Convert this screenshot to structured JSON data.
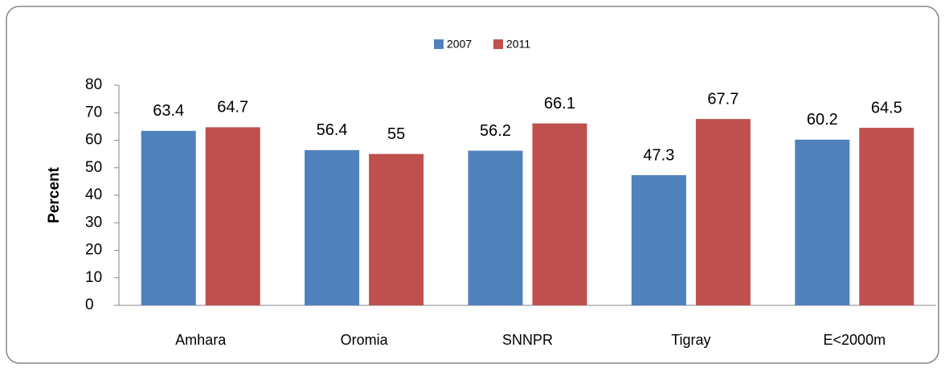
{
  "chart_data": {
    "type": "bar",
    "y_label": "Percent",
    "categories": [
      "Amhara",
      "Oromia",
      "SNNPR",
      "Tigray",
      "E<2000m"
    ],
    "series": [
      {
        "name": "2007",
        "color": "#4f81bd",
        "values": [
          63.4,
          56.4,
          56.2,
          47.3,
          60.2
        ]
      },
      {
        "name": "2011",
        "color": "#c0504d",
        "values": [
          64.7,
          55,
          66.1,
          67.7,
          64.5
        ]
      }
    ],
    "ylim": [
      0,
      80
    ],
    "yticks": [
      0,
      10,
      20,
      30,
      40,
      50,
      60,
      70,
      80
    ],
    "legend": "top",
    "grid": false
  }
}
